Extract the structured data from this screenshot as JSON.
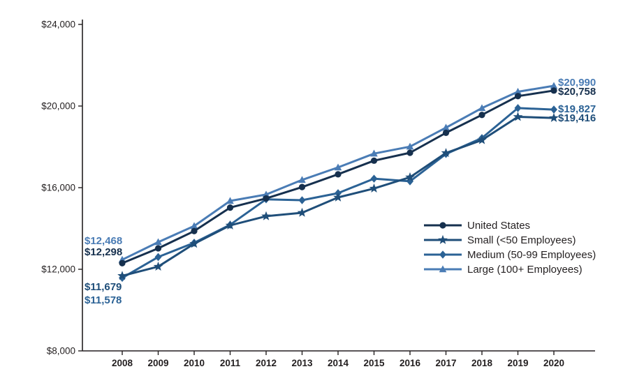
{
  "chart_data": {
    "type": "line",
    "x": [
      2008,
      2009,
      2010,
      2011,
      2012,
      2013,
      2014,
      2015,
      2016,
      2017,
      2018,
      2019,
      2020
    ],
    "x_tick_labels": [
      "2008",
      "2009",
      "2010",
      "2011",
      "2012",
      "2013",
      "2014",
      "2015",
      "2016",
      "2017",
      "2018",
      "2019",
      "2020"
    ],
    "ylim": [
      8000,
      24000
    ],
    "ytick_values": [
      8000,
      12000,
      16000,
      20000,
      24000
    ],
    "ytick_labels": [
      "$8,000",
      "$12,000",
      "$16,000",
      "$20,000",
      "$24,000"
    ],
    "xlabel": "",
    "ylabel": "",
    "title": "",
    "grid": false,
    "legend_position": "middle-right",
    "axis_color": "#231f20",
    "text_color": "#231f20",
    "series": [
      {
        "name": "United States",
        "marker": "circle",
        "color": "#16304e",
        "values": [
          12298,
          13027,
          13871,
          15022,
          15473,
          16029,
          16655,
          17322,
          17710,
          18687,
          19565,
          20486,
          20758
        ],
        "start_label": "$12,298",
        "end_label": "$20,758"
      },
      {
        "name": "Small (<50 Employees)",
        "marker": "star",
        "color": "#1f4e79",
        "values": [
          11679,
          12130,
          13250,
          14150,
          14600,
          14770,
          15520,
          15960,
          16510,
          17700,
          18330,
          19470,
          19416
        ],
        "start_label": "$11,679",
        "end_label": "$19,416"
      },
      {
        "name": "Medium (50-99 Employees)",
        "marker": "diamond",
        "color": "#2b6295",
        "values": [
          11578,
          12600,
          13300,
          14180,
          15430,
          15385,
          15730,
          16440,
          16310,
          17650,
          18430,
          19900,
          19827
        ],
        "start_label": "$11,578",
        "end_label": "$19,827"
      },
      {
        "name": "Large (100+ Employees)",
        "marker": "triangle",
        "color": "#4a7cb5",
        "values": [
          12468,
          13330,
          14120,
          15350,
          15660,
          16380,
          16990,
          17670,
          18010,
          18940,
          19900,
          20700,
          20990
        ],
        "start_label": "$12,468",
        "end_label": "$20,990"
      }
    ]
  }
}
